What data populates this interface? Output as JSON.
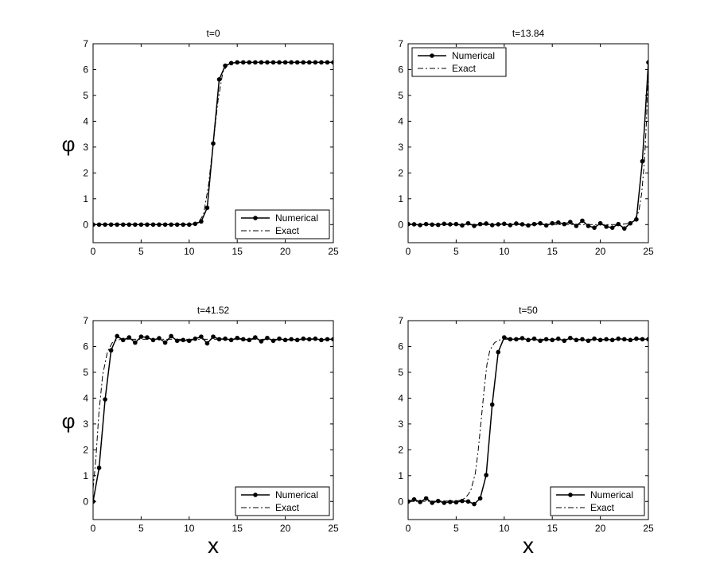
{
  "figure": {
    "row_labels": [
      "φ",
      "φ"
    ],
    "col_labels": [
      "x",
      "x"
    ]
  },
  "chart_data": [
    {
      "type": "line",
      "title": "t=0",
      "xlim": [
        0,
        25
      ],
      "ylim": [
        -0.7,
        7
      ],
      "xticks": [
        0,
        5,
        10,
        15,
        20,
        25
      ],
      "yticks": [
        0,
        1,
        2,
        3,
        4,
        5,
        6,
        7
      ],
      "legend": "bottom-right",
      "series": [
        {
          "name": "Numerical",
          "style": "solid-dots",
          "x": [
            0,
            0.625,
            1.25,
            1.875,
            2.5,
            3.125,
            3.75,
            4.375,
            5,
            5.625,
            6.25,
            6.875,
            7.5,
            8.125,
            8.75,
            9.375,
            10,
            10.625,
            11.25,
            11.875,
            12.5,
            13.125,
            13.75,
            14.375,
            15,
            15.625,
            16.25,
            16.875,
            17.5,
            18.125,
            18.75,
            19.375,
            20,
            20.625,
            21.25,
            21.875,
            22.5,
            23.125,
            23.75,
            24.375,
            25
          ],
          "y": [
            0,
            0,
            0,
            0,
            0,
            0,
            0,
            0,
            0,
            0,
            0,
            0,
            0,
            0,
            0,
            0,
            0,
            0.03,
            0.12,
            0.65,
            3.14,
            5.62,
            6.15,
            6.25,
            6.28,
            6.28,
            6.28,
            6.28,
            6.28,
            6.28,
            6.28,
            6.28,
            6.28,
            6.28,
            6.28,
            6.28,
            6.28,
            6.28,
            6.28,
            6.28,
            6.28
          ]
        },
        {
          "name": "Exact",
          "style": "dashdot",
          "x": [
            0,
            9,
            10,
            10.5,
            11,
            11.5,
            12,
            12.5,
            13,
            13.5,
            14,
            14.5,
            15,
            16,
            25
          ],
          "y": [
            0,
            0,
            0.01,
            0.03,
            0.1,
            0.4,
            1.5,
            3.14,
            4.8,
            5.9,
            6.18,
            6.25,
            6.27,
            6.28,
            6.28
          ]
        }
      ]
    },
    {
      "type": "line",
      "title": "t=13.84",
      "xlim": [
        0,
        25
      ],
      "ylim": [
        -0.7,
        7
      ],
      "xticks": [
        0,
        5,
        10,
        15,
        20,
        25
      ],
      "yticks": [
        0,
        1,
        2,
        3,
        4,
        5,
        6,
        7
      ],
      "legend": "top-left",
      "series": [
        {
          "name": "Numerical",
          "style": "solid-dots",
          "x": [
            0,
            0.625,
            1.25,
            1.875,
            2.5,
            3.125,
            3.75,
            4.375,
            5,
            5.625,
            6.25,
            6.875,
            7.5,
            8.125,
            8.75,
            9.375,
            10,
            10.625,
            11.25,
            11.875,
            12.5,
            13.125,
            13.75,
            14.375,
            15,
            15.625,
            16.25,
            16.875,
            17.5,
            18.125,
            18.75,
            19.375,
            20,
            20.625,
            21.25,
            21.875,
            22.5,
            23.125,
            23.75,
            24.375,
            25
          ],
          "y": [
            0.02,
            0.01,
            -0.02,
            0.02,
            0,
            -0.01,
            0.03,
            0.01,
            0.02,
            -0.03,
            0.05,
            -0.05,
            0.02,
            0.04,
            -0.02,
            0.01,
            0.03,
            -0.02,
            0.04,
            0.01,
            -0.03,
            0.02,
            0.05,
            -0.03,
            0.05,
            0.08,
            0.02,
            0.1,
            -0.05,
            0.15,
            -0.05,
            -0.12,
            0.05,
            -0.08,
            -0.12,
            0.02,
            -0.15,
            0.05,
            0.2,
            2.45,
            6.28
          ]
        },
        {
          "name": "Exact",
          "style": "dashdot",
          "x": [
            0,
            21,
            22,
            23,
            23.5,
            24,
            24.3,
            24.6,
            24.8,
            25
          ],
          "y": [
            0,
            0,
            0,
            0.05,
            0.15,
            0.5,
            1.2,
            2.5,
            4,
            6.28
          ]
        }
      ]
    },
    {
      "type": "line",
      "title": "t=41.52",
      "xlim": [
        0,
        25
      ],
      "ylim": [
        -0.7,
        7
      ],
      "xticks": [
        0,
        5,
        10,
        15,
        20,
        25
      ],
      "yticks": [
        0,
        1,
        2,
        3,
        4,
        5,
        6,
        7
      ],
      "legend": "bottom-right",
      "series": [
        {
          "name": "Numerical",
          "style": "solid-dots",
          "x": [
            0,
            0.625,
            1.25,
            1.875,
            2.5,
            3.125,
            3.75,
            4.375,
            5,
            5.625,
            6.25,
            6.875,
            7.5,
            8.125,
            8.75,
            9.375,
            10,
            10.625,
            11.25,
            11.875,
            12.5,
            13.125,
            13.75,
            14.375,
            15,
            15.625,
            16.25,
            16.875,
            17.5,
            18.125,
            18.75,
            19.375,
            20,
            20.625,
            21.25,
            21.875,
            22.5,
            23.125,
            23.75,
            24.375,
            25
          ],
          "y": [
            0,
            1.3,
            3.95,
            5.85,
            6.4,
            6.25,
            6.35,
            6.15,
            6.38,
            6.35,
            6.25,
            6.32,
            6.15,
            6.4,
            6.22,
            6.25,
            6.22,
            6.3,
            6.38,
            6.12,
            6.38,
            6.28,
            6.3,
            6.25,
            6.33,
            6.28,
            6.25,
            6.35,
            6.2,
            6.33,
            6.22,
            6.3,
            6.25,
            6.28,
            6.25,
            6.3,
            6.28,
            6.3,
            6.25,
            6.28,
            6.28
          ]
        },
        {
          "name": "Exact",
          "style": "dashdot",
          "x": [
            0,
            0.3,
            0.6,
            1,
            1.5,
            2,
            2.5,
            3,
            4,
            25
          ],
          "y": [
            0.5,
            1.7,
            3.4,
            4.9,
            5.8,
            6.15,
            6.25,
            6.28,
            6.28,
            6.28
          ]
        }
      ]
    },
    {
      "type": "line",
      "title": "t=50",
      "xlim": [
        0,
        25
      ],
      "ylim": [
        -0.7,
        7
      ],
      "xticks": [
        0,
        5,
        10,
        15,
        20,
        25
      ],
      "yticks": [
        0,
        1,
        2,
        3,
        4,
        5,
        6,
        7
      ],
      "legend": "bottom-right",
      "series": [
        {
          "name": "Numerical",
          "style": "solid-dots",
          "x": [
            0,
            0.625,
            1.25,
            1.875,
            2.5,
            3.125,
            3.75,
            4.375,
            5,
            5.625,
            6.25,
            6.875,
            7.5,
            8.125,
            8.75,
            9.375,
            10,
            10.625,
            11.25,
            11.875,
            12.5,
            13.125,
            13.75,
            14.375,
            15,
            15.625,
            16.25,
            16.875,
            17.5,
            18.125,
            18.75,
            19.375,
            20,
            20.625,
            21.25,
            21.875,
            22.5,
            23.125,
            23.75,
            24.375,
            25
          ],
          "y": [
            0,
            0.08,
            -0.02,
            0.12,
            -0.05,
            0.02,
            -0.05,
            -0.02,
            -0.03,
            0.02,
            0,
            -0.1,
            0.12,
            1.02,
            3.75,
            5.78,
            6.35,
            6.28,
            6.28,
            6.32,
            6.25,
            6.3,
            6.22,
            6.28,
            6.25,
            6.3,
            6.22,
            6.33,
            6.25,
            6.28,
            6.22,
            6.3,
            6.25,
            6.28,
            6.25,
            6.3,
            6.28,
            6.25,
            6.3,
            6.28,
            6.28
          ]
        },
        {
          "name": "Exact",
          "style": "dashdot",
          "x": [
            0,
            5,
            5.5,
            6,
            6.5,
            7,
            7.3,
            7.6,
            7.9,
            8.2,
            8.5,
            9,
            9.5,
            10,
            25
          ],
          "y": [
            0,
            0.02,
            0.05,
            0.15,
            0.4,
            1.1,
            2,
            3.14,
            4.3,
            5.3,
            5.85,
            6.15,
            6.25,
            6.28,
            6.28
          ]
        }
      ]
    }
  ]
}
